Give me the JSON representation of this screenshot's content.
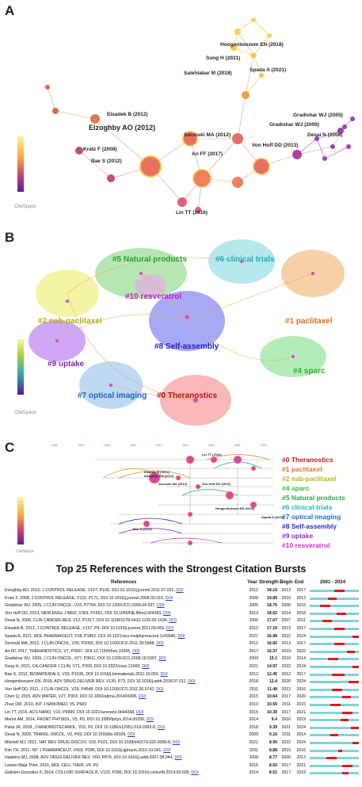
{
  "panels": {
    "a": {
      "label": "A",
      "nodes": [
        "Hoogenboezem EN (2018)",
        "Sung H (2021)",
        "Spada A (2021)",
        "Salehiabar M (2018)",
        "Elsadek B (2012)",
        "Elzoghby AO (2012)",
        "Socinski MA (2012)",
        "Desai N (2006)",
        "Gradishar WJ (2005)",
        "Gradishar WJ (2009)",
        "Von Hoff DD (2013)",
        "Kratz F (2008)",
        "Bae S (2012)",
        "An FF (2017)",
        "Lin TT (2016)"
      ],
      "logo": "CiteSpace"
    },
    "b": {
      "label": "B",
      "clusters": [
        "#5 Natural products",
        "#6 clinical trials",
        "#10 resveratrol",
        "#2 nab-paclitaxel",
        "#1 paclitaxel",
        "#8 Self-assembly",
        "#9 uptake",
        "#4 sparc",
        "#7 optical imaging",
        "#0 Theranostics"
      ],
      "logo": "CiteSpace"
    },
    "c": {
      "label": "C",
      "years": [
        "2000",
        "2003",
        "2006",
        "2009",
        "2012",
        "2015",
        "2018",
        "2021",
        "2024"
      ],
      "nodes": [
        "Lin TT (2016)",
        "Elsadek B (2012)",
        "Elzoghby AO (2012)",
        "Socinski MA (2012)",
        "Von Hoff DD (2013)",
        "Hoogenboezem EN (2018)",
        "Spada A (2021)",
        "Bae S (2012)"
      ],
      "clusters": [
        {
          "name": "#0 Theranostics",
          "color": "#c0151b"
        },
        {
          "name": "#1 paclitaxel",
          "color": "#e0742a"
        },
        {
          "name": "#2 nab-paclitaxel",
          "color": "#b5b814"
        },
        {
          "name": "#4 sparc",
          "color": "#3fb538"
        },
        {
          "name": "#5 Natural products",
          "color": "#27a85a"
        },
        {
          "name": "#6 clinical trials",
          "color": "#1fb3b8"
        },
        {
          "name": "#7 optical imaging",
          "color": "#1e6fc2"
        },
        {
          "name": "#8 Self-assembly",
          "color": "#2a2ad6"
        },
        {
          "name": "#9 uptake",
          "color": "#8a2ad0"
        },
        {
          "name": "#10 resveratrol",
          "color": "#d02ad0"
        }
      ],
      "logo": "CiteSpace"
    },
    "d": {
      "label": "D",
      "title": "Top 25 References with the Strongest Citation Bursts",
      "headers": {
        "references": "References",
        "year": "Year",
        "strength": "Strength",
        "begin": "Begin",
        "end": "End",
        "range": "2001 - 2024"
      },
      "range_start": 2001,
      "range_end": 2024,
      "rows": [
        {
          "ref": "Elzoghby AO, 2012, J CONTROL RELEASE, V157, P168, DOI 10.1016/j.jconrel.2011.07.031,",
          "doi": "DOI",
          "year": "2012",
          "strength": "34.19",
          "begin": "2013",
          "end": "2017"
        },
        {
          "ref": "Kratz F, 2008, J CONTROL RELEASE, V132, P171, DOI 10.1016/j.jconrel.2008.05.010,",
          "doi": "DOI",
          "year": "2008",
          "strength": "19.89",
          "begin": "2010",
          "end": "2013"
        },
        {
          "ref": "Gradishar WJ, 2005, J CLIN ONCOL, V23, P7794, DOI 10.1200/JCO.2005.04.937,",
          "doi": "DOI",
          "year": "2005",
          "strength": "18.75",
          "begin": "2006",
          "end": "2010"
        },
        {
          "ref": "Von Hoff DD, 2013, NEW ENGL J MED, V369, P1691, DOI 10.1056/NEJMoa1304369,",
          "doi": "DOI",
          "year": "2013",
          "strength": "18.62",
          "begin": "2014",
          "end": "2018"
        },
        {
          "ref": "Desai N, 2006, CLIN CANCER RES, V12, P1317, DOI 10.1158/1078-0432.CCR-05-1634,",
          "doi": "DOI",
          "year": "2006",
          "strength": "17.67",
          "begin": "2007",
          "end": "2011"
        },
        {
          "ref": "Elsadek B, 2012, J CONTROL RELEASE, V157, P4, DOI 10.1016/j.jconrel.2011.09.069,",
          "doi": "DOI",
          "year": "2012",
          "strength": "17.19",
          "begin": "2013",
          "end": "2017"
        },
        {
          "ref": "Spada A, 2021, MOL PHARMACEUT, V18, P1862, DOI 10.1021/acs.molpharmaceut.1c00046,",
          "doi": "DOI",
          "year": "2021",
          "strength": "16.98",
          "begin": "2022",
          "end": "2024"
        },
        {
          "ref": "Socinski MA, 2012, J CLIN ONCOL, V30, P2055, DOI 10.1200/JCO.2011.39.5848,",
          "doi": "DOI",
          "year": "2012",
          "strength": "16.82",
          "begin": "2013",
          "end": "2017"
        },
        {
          "ref": "An FF, 2017, THERANOSTICS, V7, P3667, DOI 10.7150/thno.19365,",
          "doi": "DOI",
          "year": "2017",
          "strength": "16.37",
          "begin": "2019",
          "end": "2022"
        },
        {
          "ref": "Gradishar WJ, 2009, J CLIN ONCOL, V27, P3611, DOI 10.1200/JCO.2008.18.5397,",
          "doi": "DOI",
          "year": "2009",
          "strength": "15.1",
          "begin": "2010",
          "end": "2014"
        },
        {
          "ref": "Sung H, 2021, CA-CANCER J CLIN, V71, P209, DOI 10.3322/caac.21660,",
          "doi": "DOI",
          "year": "2021",
          "strength": "14.97",
          "begin": "2022",
          "end": "2024"
        },
        {
          "ref": "Bae S, 2012, BIOMATERIALS, V33, P1536, DOI 10.1016/j.biomaterials.2011.10.050,",
          "doi": "DOI",
          "year": "2012",
          "strength": "12.45",
          "begin": "2012",
          "end": "2017"
        },
        {
          "ref": "Hoogenboezem EN, 2018, ADV DRUG DELIVER REV, V130, P73, DOI 10.1016/j.addr.2018.07.011,",
          "doi": "DOI",
          "year": "2018",
          "strength": "12.4",
          "begin": "2020",
          "end": "2024"
        },
        {
          "ref": "Von Hoff DD, 2011, J CLIN ONCOL, V29, P4548, DOI 10.1200/JCO.2011.36.5742,",
          "doi": "DOI",
          "year": "2011",
          "strength": "11.48",
          "begin": "2012",
          "end": "2016"
        },
        {
          "ref": "Chen Q, 2015, ADV MATER, V27, P903, DOI 10.1002/adma.201404308,",
          "doi": "DOI",
          "year": "2015",
          "strength": "10.64",
          "begin": "2017",
          "end": "2020"
        },
        {
          "ref": "Zhao DM, 2010, INT J NANOMED, V5, P669",
          "doi": "",
          "year": "2010",
          "strength": "10.56",
          "begin": "2011",
          "end": "2015"
        },
        {
          "ref": "Lin TT, 2016, ACS NANO, V10, P9999, DOI 10.1021/acsnano.6b04268,",
          "doi": "DOI",
          "year": "2016",
          "strength": "10.39",
          "begin": "2017",
          "end": "2021"
        },
        {
          "ref": "Merlot AM, 2014, FRONT PHYSIOL, V5, P0, DOI 10.3389/fphys.2014.00299,",
          "doi": "DOI",
          "year": "2014",
          "strength": "9.4",
          "begin": "2016",
          "end": "2019"
        },
        {
          "ref": "Patra JK, 2018, J NANOBIOTECHNOL, V16, P0, DOI 10.1186/s12951-018-0392-8,",
          "doi": "DOI",
          "year": "2018",
          "strength": "9.39",
          "begin": "2021",
          "end": "2024"
        },
        {
          "ref": "Desai N, 2009, TRANSL ONCOL, V2, P59, DOI 10.1593/tlo.09109,",
          "doi": "DOI",
          "year": "2009",
          "strength": "9.16",
          "begin": "2011",
          "end": "2014"
        },
        {
          "ref": "Mitchell MJ, 2021, NAT REV DRUG DISCOV, V20, P101, DOI 10.1038/s41573-020-0090-8,",
          "doi": "DOI",
          "year": "2021",
          "strength": "8.95",
          "begin": "2022",
          "end": "2024"
        },
        {
          "ref": "Kim TH, 2011, INT J PHARMACEUT, V403, P285, DOI 10.1016/j.ijpharm.2010.10.041,",
          "doi": "DOI",
          "year": "2011",
          "strength": "8.88",
          "begin": "2015",
          "end": "2016"
        },
        {
          "ref": "Hawkins MJ, 2008, ADV DRUG DELIVER REV, V60, P876, DOI 10.1016/j.addr.2007.08.044,",
          "doi": "DOI",
          "year": "2008",
          "strength": "8.77",
          "begin": "2009",
          "end": "2013"
        },
        {
          "ref": "Larsen Maja Thim, 2016, MOL CELL THER, V4, P3",
          "doi": "",
          "year": "2016",
          "strength": "8.65",
          "begin": "2017",
          "end": "2021"
        },
        {
          "ref": "Galisteo-González F, 2014, COLLOID SURFACE B, V123, P286, DOI 10.1016/j.colsurfb.2014.09.028,",
          "doi": "DOI",
          "year": "2014",
          "strength": "8.51",
          "begin": "2017",
          "end": "2019"
        }
      ]
    }
  }
}
